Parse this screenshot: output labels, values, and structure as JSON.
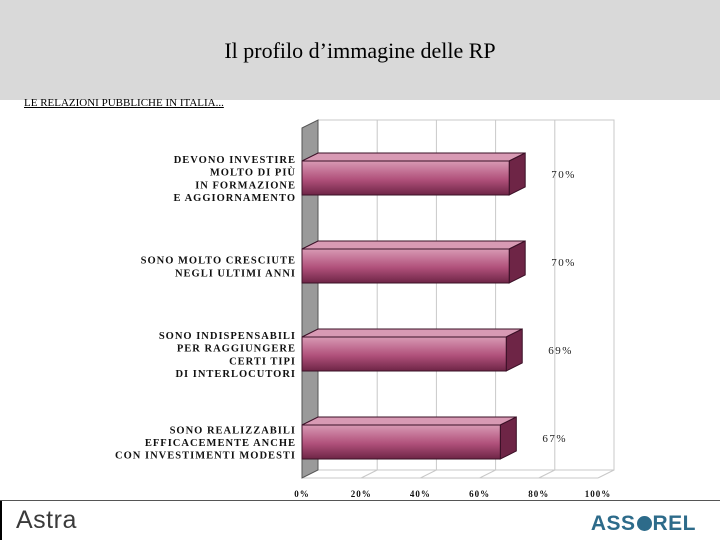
{
  "header": {
    "title": "Il profilo d’immagine delle RP",
    "subtitle": "LE RELAZIONI PUBBLICHE IN ITALIA..."
  },
  "footer": {
    "left_logo": "Astra",
    "right_logo_pre": "ASS",
    "right_logo_post": "REL"
  },
  "colors": {
    "header_bg": "#d9d9d9",
    "bar_fill": "#b0507a",
    "bar_highlight": "#d89ab4",
    "bar_shadow": "#6e2546",
    "wall": "#9a9a9a",
    "logo_blue": "#2d6b8a"
  },
  "chart_data": {
    "type": "bar",
    "orientation": "horizontal",
    "categories": [
      [
        "DEVONO INVESTIRE",
        "MOLTO DI PIÙ",
        "IN FORMAZIONE",
        "E AGGIORNAMENTO"
      ],
      [
        "SONO MOLTO CRESCIUTE",
        "NEGLI ULTIMI ANNI"
      ],
      [
        "SONO INDISPENSABILI",
        "PER RAGGIUNGERE",
        "CERTI TIPI",
        "DI INTERLOCUTORI"
      ],
      [
        "SONO REALIZZABILI",
        "EFFICACEMENTE ANCHE",
        "CON INVESTIMENTI MODESTI"
      ]
    ],
    "values": [
      70,
      70,
      69,
      67
    ],
    "data_labels": [
      "70%",
      "70%",
      "69%",
      "67%"
    ],
    "xlim": [
      0,
      100
    ],
    "x_ticks": [
      "0%",
      "20%",
      "40%",
      "60%",
      "80%",
      "100%"
    ],
    "grid": true,
    "legend": "none"
  }
}
